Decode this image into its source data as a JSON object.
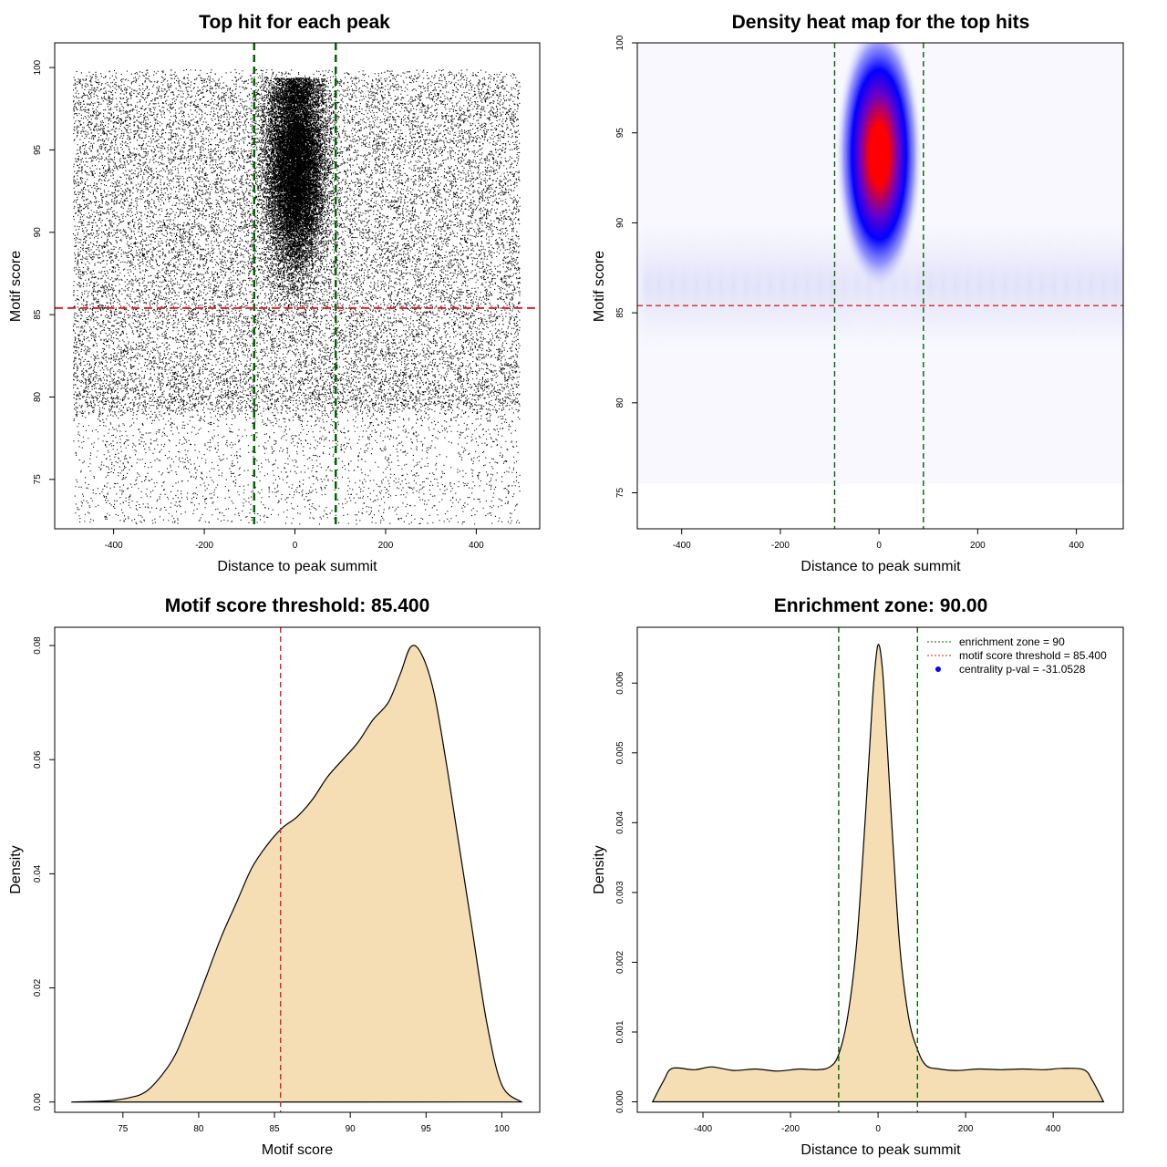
{
  "chart_data": [
    {
      "type": "scatter",
      "title": "Top hit for each peak",
      "xlabel": "Distance to peak summit",
      "ylabel": "Motif score",
      "xlim": [
        -530,
        540
      ],
      "ylim": [
        72,
        101.5
      ],
      "x_ticks": [
        -400,
        -200,
        0,
        200,
        400
      ],
      "y_ticks": [
        75,
        80,
        85,
        90,
        95,
        100
      ],
      "vlines": [
        -90,
        90
      ],
      "hline": 85.4,
      "points_description": "dense uniform scatter over x in [-490, 495], y in [72, 100], with strong concentration around x≈0 for y in 83–99",
      "line_colors": {
        "vline": "#006400",
        "hline": "#dd2222"
      }
    },
    {
      "type": "heatmap",
      "title": "Density heat map for the top hits",
      "xlabel": "Distance to peak summit",
      "ylabel": "Motif score",
      "xlim": [
        -490,
        495
      ],
      "ylim": [
        73,
        100
      ],
      "x_ticks": [
        -400,
        -200,
        0,
        200,
        400
      ],
      "y_ticks": [
        75,
        80,
        85,
        90,
        95,
        100
      ],
      "vlines": [
        -90,
        90
      ],
      "hline": 85.4,
      "peak": {
        "x": 0,
        "y": 94.5
      },
      "colors": [
        "#ffffff",
        "#0000ff",
        "#ff0000"
      ]
    },
    {
      "type": "area",
      "title": "Motif score threshold: 85.400",
      "xlabel": "Motif score",
      "ylabel": "Density",
      "xlim": [
        70.5,
        102.5
      ],
      "ylim": [
        -0.0018,
        0.0832
      ],
      "x_ticks": [
        75,
        80,
        85,
        90,
        95,
        100
      ],
      "y_ticks": [
        0.0,
        0.02,
        0.04,
        0.06,
        0.08
      ],
      "y_tick_labels": [
        "0.00",
        "0.02",
        "0.04",
        "0.06",
        "0.08"
      ],
      "vline": 85.4,
      "fill": "#f5deb3",
      "x": [
        71.6,
        74,
        75.5,
        76.5,
        77.5,
        78.5,
        79.5,
        80.5,
        81.5,
        82.5,
        83.5,
        84.5,
        85.5,
        86.5,
        87.5,
        88.5,
        89.5,
        90.5,
        91.5,
        92.5,
        93.3,
        94.0,
        94.7,
        95.5,
        96.3,
        97.0,
        98.0,
        99.0,
        100.0,
        101.3
      ],
      "values": [
        0.0,
        0.0002,
        0.0008,
        0.0018,
        0.0045,
        0.0085,
        0.015,
        0.022,
        0.029,
        0.035,
        0.041,
        0.045,
        0.048,
        0.05,
        0.053,
        0.057,
        0.06,
        0.063,
        0.067,
        0.07,
        0.075,
        0.0798,
        0.0785,
        0.072,
        0.06,
        0.048,
        0.031,
        0.014,
        0.003,
        0.0
      ]
    },
    {
      "type": "area",
      "title": "Enrichment zone: 90.00",
      "xlabel": "Distance to peak summit",
      "ylabel": "Density",
      "xlim": [
        -550,
        560
      ],
      "ylim": [
        -0.00015,
        0.0068
      ],
      "x_ticks": [
        -400,
        -200,
        0,
        200,
        400
      ],
      "y_ticks": [
        0.0,
        0.001,
        0.002,
        0.003,
        0.004,
        0.005,
        0.006
      ],
      "y_tick_labels": [
        "0.000",
        "0.001",
        "0.002",
        "0.003",
        "0.004",
        "0.005",
        "0.006"
      ],
      "vlines": [
        -90,
        90
      ],
      "fill": "#f5deb3",
      "x": [
        -515,
        -490,
        -470,
        -420,
        -380,
        -330,
        -280,
        -230,
        -180,
        -140,
        -110,
        -90,
        -70,
        -50,
        -35,
        -20,
        -10,
        0,
        10,
        20,
        35,
        50,
        70,
        90,
        110,
        140,
        180,
        230,
        280,
        330,
        380,
        420,
        470,
        490,
        515
      ],
      "values": [
        0.0,
        0.0003,
        0.00048,
        0.00046,
        0.0005,
        0.00045,
        0.00047,
        0.00044,
        0.00047,
        0.00046,
        0.0005,
        0.00068,
        0.0012,
        0.0022,
        0.0035,
        0.005,
        0.006,
        0.00655,
        0.0062,
        0.0052,
        0.0036,
        0.0022,
        0.0012,
        0.00075,
        0.00052,
        0.00047,
        0.00045,
        0.00047,
        0.00046,
        0.00047,
        0.00046,
        0.00048,
        0.00046,
        0.0003,
        0.0
      ]
    }
  ],
  "legend": {
    "entries": [
      {
        "label": "enrichment zone = 90",
        "color": "#006400",
        "style": "dotted-line"
      },
      {
        "label": "motif score threshold = 85.400",
        "color": "#dd2222",
        "style": "dotted-line"
      },
      {
        "label": "centrality p-val = -31.0528",
        "color": "#0000ff",
        "style": "dot"
      }
    ]
  }
}
